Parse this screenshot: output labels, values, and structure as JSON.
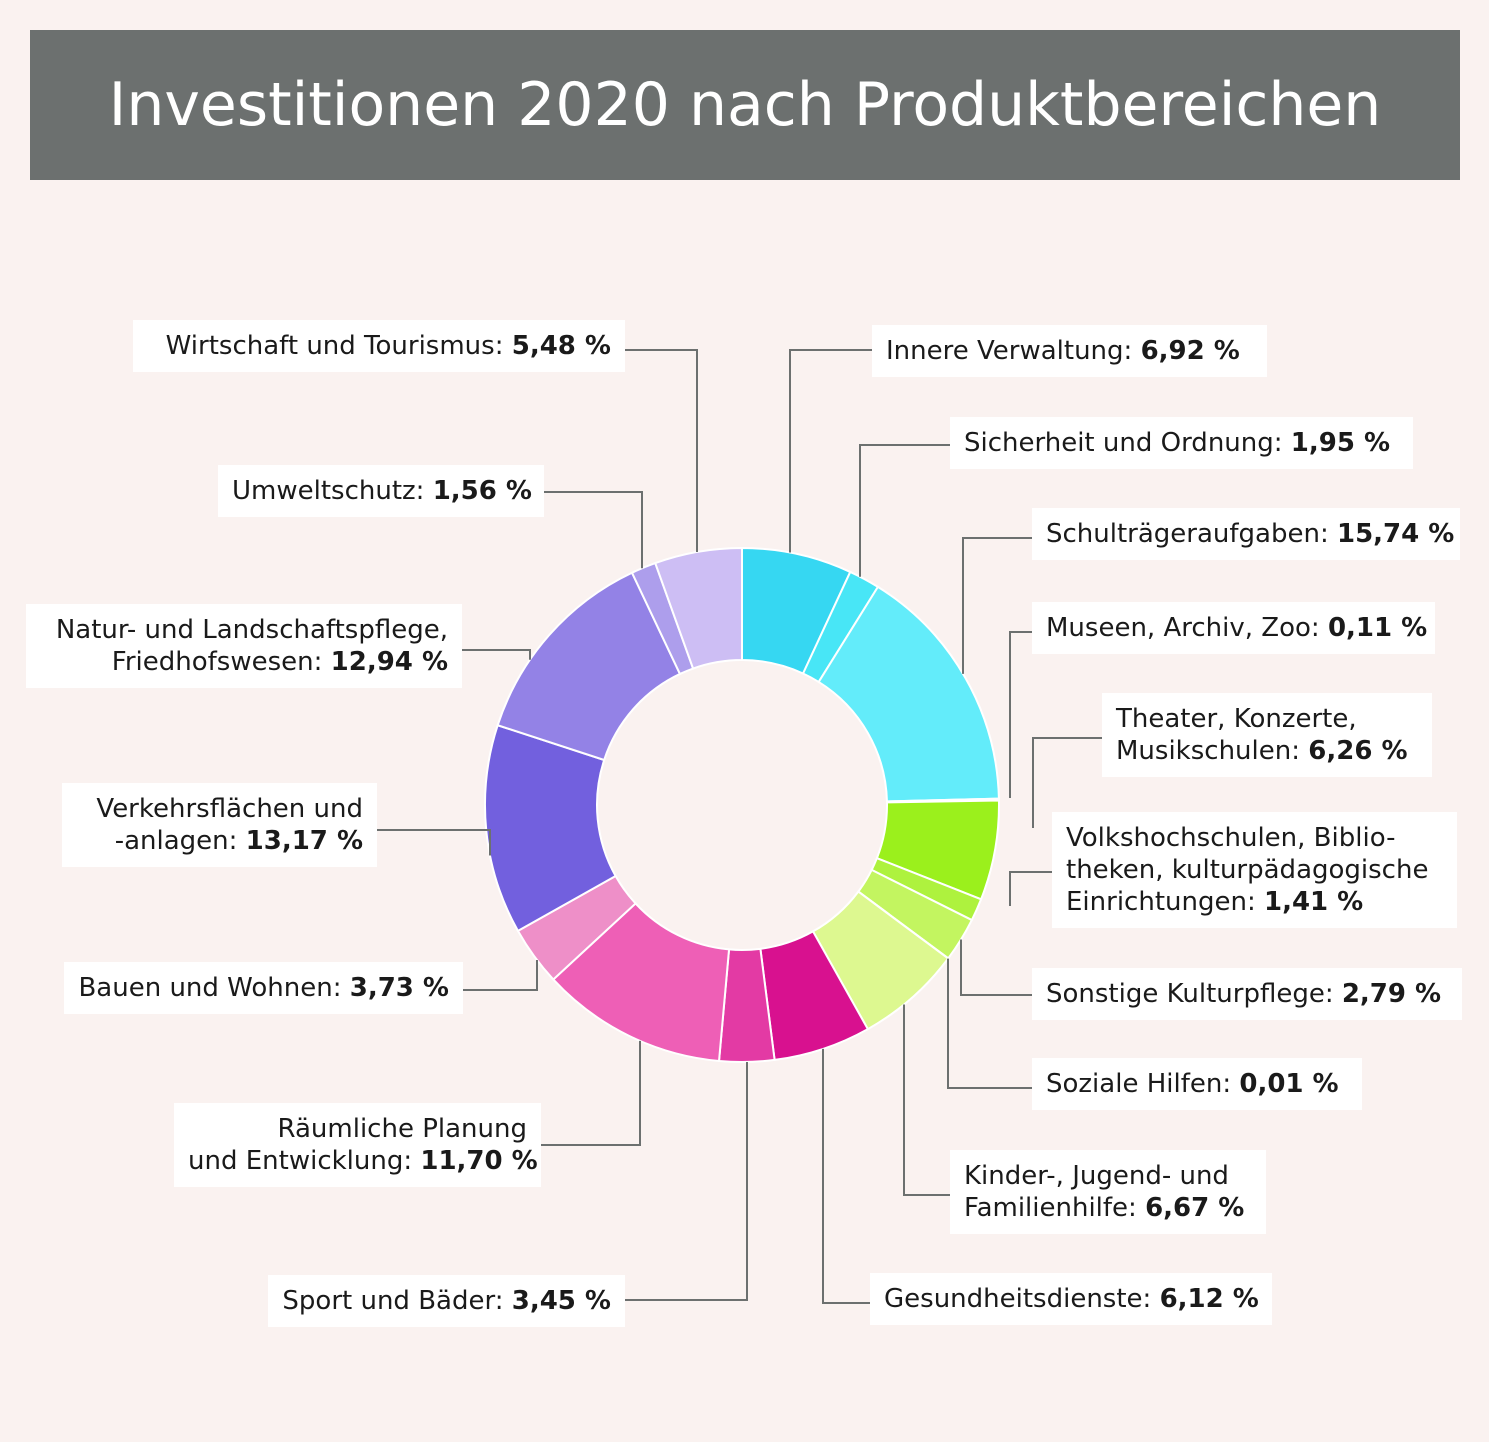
{
  "title": "Investitionen 2020 nach Produktbereichen",
  "chart_data": {
    "type": "pie",
    "variant": "donut",
    "title": "Investitionen 2020 nach Produktbereichen",
    "segments": [
      {
        "name": "Innere Verwaltung",
        "value": 6.92,
        "label": "6,92 %",
        "color": "#36d7f2"
      },
      {
        "name": "Sicherheit und Ordnung",
        "value": 1.95,
        "label": "1,95 %",
        "color": "#48e6f6"
      },
      {
        "name": "Schulträgeraufgaben",
        "value": 15.74,
        "label": "15,74 %",
        "color": "#63ecfa"
      },
      {
        "name": "Museen, Archiv, Zoo",
        "value": 0.11,
        "label": "0,11 %",
        "color": "#7ef0f8"
      },
      {
        "name": "Theater, Konzerte, Musikschulen",
        "value": 6.26,
        "label": "6,26 %",
        "color": "#9bf01c"
      },
      {
        "name": "Volkshochschulen, Bibliotheken, kulturpädagogische Einrichtungen",
        "value": 1.41,
        "label": "1,41 %",
        "color": "#aef23e"
      },
      {
        "name": "Sonstige Kulturpflege",
        "value": 2.79,
        "label": "2,79 %",
        "color": "#c3f560"
      },
      {
        "name": "Soziale Hilfen",
        "value": 0.01,
        "label": "0,01 %",
        "color": "#d3f67c"
      },
      {
        "name": "Kinder-, Jugend- und Familienhilfe",
        "value": 6.67,
        "label": "6,67 %",
        "color": "#ddf890"
      },
      {
        "name": "Gesundheitsdienste",
        "value": 6.12,
        "label": "6,12 %",
        "color": "#d8118f"
      },
      {
        "name": "Sport und Bäder",
        "value": 3.45,
        "label": "3,45 %",
        "color": "#e33aa4"
      },
      {
        "name": "Räumliche Planung und Entwicklung",
        "value": 11.7,
        "label": "11,70 %",
        "color": "#ee5fb6"
      },
      {
        "name": "Bauen und Wohnen",
        "value": 3.73,
        "label": "3,73 %",
        "color": "#ee8fc8"
      },
      {
        "name": "Verkehrsflächen und -anlagen",
        "value": 13.17,
        "label": "13,17 %",
        "color": "#7260de"
      },
      {
        "name": "Natur- und Landschaftspflege, Friedhofswesen",
        "value": 12.94,
        "label": "12,94 %",
        "color": "#9382e6"
      },
      {
        "name": "Umweltschutz",
        "value": 1.56,
        "label": "1,56 %",
        "color": "#ad9eec"
      },
      {
        "name": "Wirtschaft und Tourismus",
        "value": 5.48,
        "label": "5,48 %",
        "color": "#cdbef4"
      }
    ],
    "labels": [
      {
        "lines": [
          "Innere Verwaltung: "
        ],
        "value": "6,92 %"
      },
      {
        "lines": [
          "Sicherheit und Ordnung: "
        ],
        "value": "1,95 %"
      },
      {
        "lines": [
          "Schulträgeraufgaben: "
        ],
        "value": "15,74 %"
      },
      {
        "lines": [
          "Museen, Archiv, Zoo: "
        ],
        "value": "0,11 %"
      },
      {
        "lines": [
          "Theater, Konzerte,",
          "Musikschulen: "
        ],
        "value": "6,26 %"
      },
      {
        "lines": [
          "Volkshochschulen, Biblio-",
          "theken, kulturpädagogische",
          "Einrichtungen: "
        ],
        "value": "1,41 %"
      },
      {
        "lines": [
          "Sonstige Kulturpflege: "
        ],
        "value": "2,79 %"
      },
      {
        "lines": [
          "Soziale Hilfen: "
        ],
        "value": "0,01 %"
      },
      {
        "lines": [
          "Kinder-, Jugend- und",
          "Familienhilfe: "
        ],
        "value": "6,67 %"
      },
      {
        "lines": [
          "Gesundheitsdienste: "
        ],
        "value": "6,12 %"
      },
      {
        "lines": [
          "Sport und Bäder: "
        ],
        "value": "3,45 %"
      },
      {
        "lines": [
          "Räumliche Planung",
          "und Entwicklung: "
        ],
        "value": "11,70 %"
      },
      {
        "lines": [
          "Bauen und Wohnen: "
        ],
        "value": "3,73 %"
      },
      {
        "lines": [
          "Verkehrsflächen und",
          "-anlagen: "
        ],
        "value": "13,17 %"
      },
      {
        "lines": [
          "Natur- und Landschaftspflege,",
          "Friedhofswesen: "
        ],
        "value": "12,94 %"
      },
      {
        "lines": [
          "Umweltschutz: "
        ],
        "value": "1,56 %"
      },
      {
        "lines": [
          "Wirtschaft und Tourismus: "
        ],
        "value": "5,48 %"
      }
    ],
    "legend": "callout-labels"
  }
}
